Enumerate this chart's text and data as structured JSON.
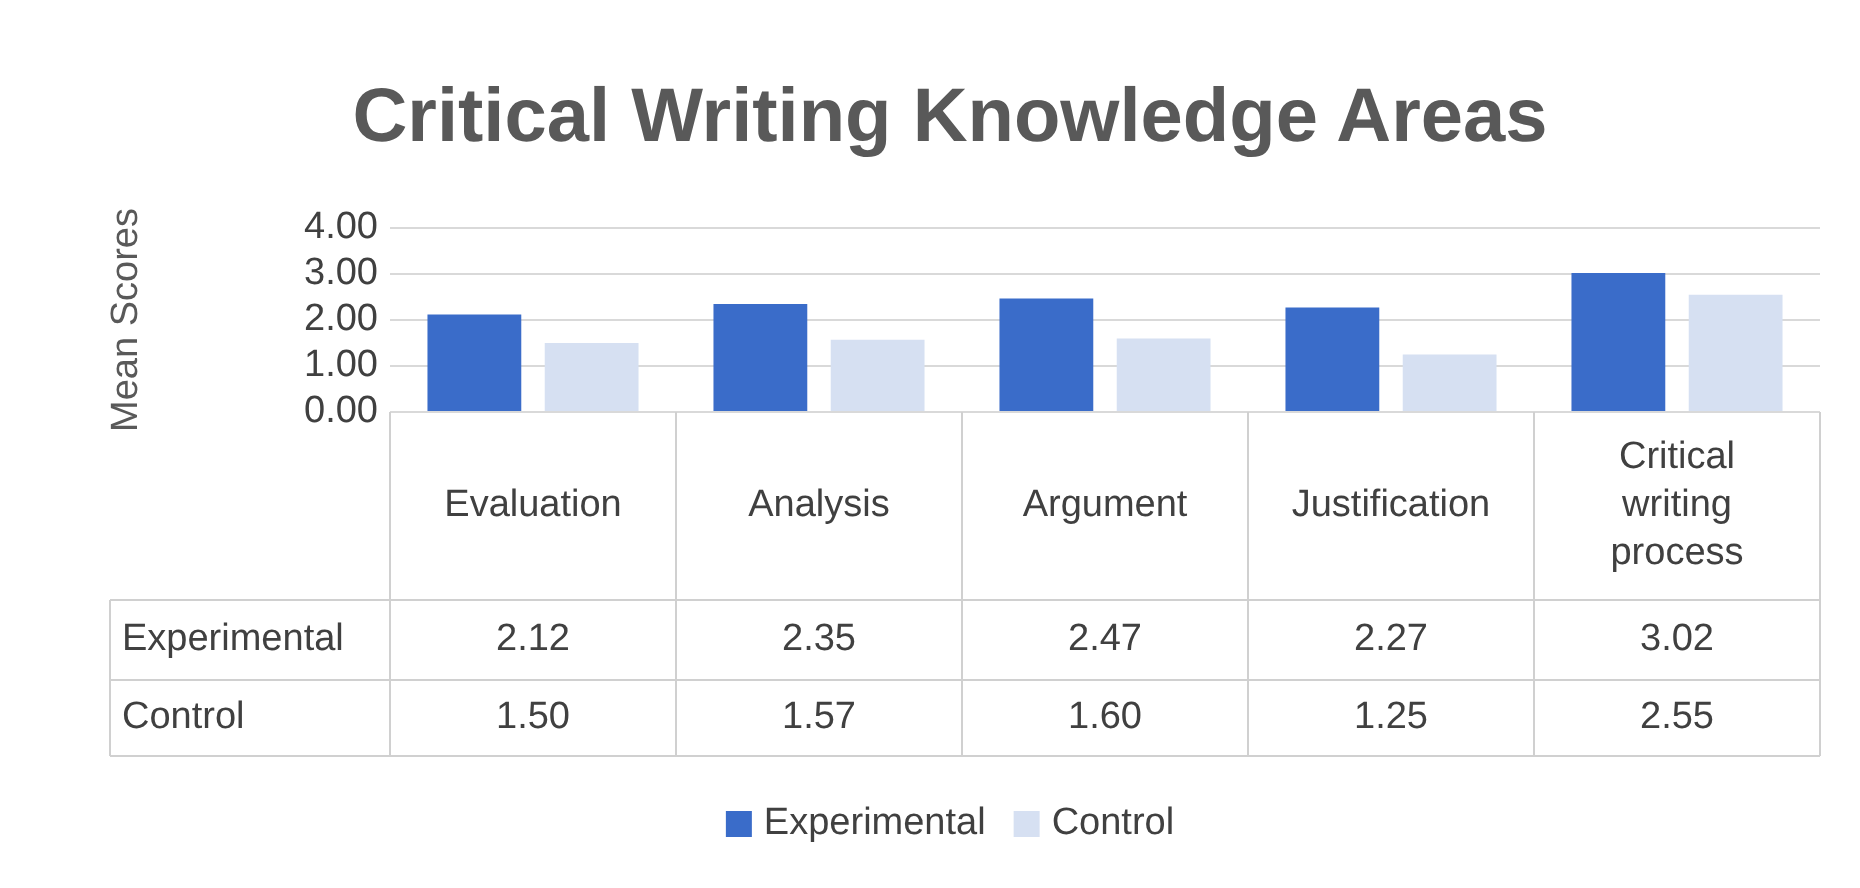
{
  "chart_data": {
    "type": "bar",
    "title": "Critical Writing Knowledge Areas",
    "ylabel": "Mean Scores",
    "categories": [
      "Evaluation",
      "Analysis",
      "Argument",
      "Justification",
      "Critical writing process"
    ],
    "series": [
      {
        "name": "Experimental",
        "color": "#3a6cc9",
        "values": [
          2.12,
          2.35,
          2.47,
          2.27,
          3.02
        ],
        "value_labels": [
          "2.12",
          "2.35",
          "2.47",
          "2.27",
          "3.02"
        ]
      },
      {
        "name": "Control",
        "color": "#d6e0f2",
        "values": [
          1.5,
          1.57,
          1.6,
          1.25,
          2.55
        ],
        "value_labels": [
          "1.50",
          "1.57",
          "1.60",
          "1.25",
          "2.55"
        ]
      }
    ],
    "ylim": [
      0,
      4
    ],
    "yticks": [
      {
        "value": 0,
        "label": "0.00"
      },
      {
        "value": 1,
        "label": "1.00"
      },
      {
        "value": 2,
        "label": "2.00"
      },
      {
        "value": 3,
        "label": "3.00"
      },
      {
        "value": 4,
        "label": "4.00"
      }
    ],
    "grid": "y",
    "legend": "bottom"
  }
}
